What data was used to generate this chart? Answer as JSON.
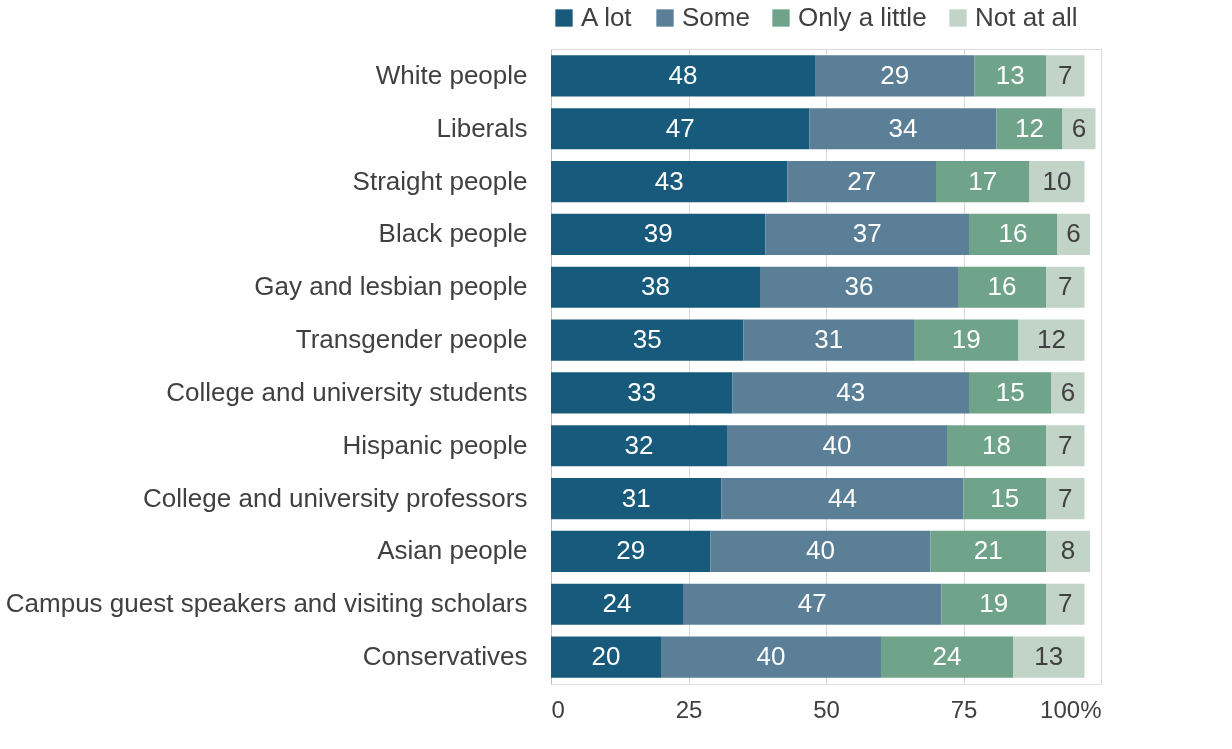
{
  "chart_data": {
    "type": "bar",
    "orientation": "horizontal",
    "stacked": true,
    "categories": [
      "White people",
      "Liberals",
      "Straight people",
      "Black people",
      "Gay and lesbian people",
      "Transgender people",
      "College and university students",
      "Hispanic people",
      "College and university professors",
      "Asian people",
      "Campus guest speakers and visiting scholars",
      "Conservatives"
    ],
    "series": [
      {
        "name": "A lot",
        "color": "#175a7c",
        "values": [
          48,
          47,
          43,
          39,
          38,
          35,
          33,
          32,
          31,
          29,
          24,
          20
        ]
      },
      {
        "name": "Some",
        "color": "#5b7f96",
        "values": [
          29,
          34,
          27,
          37,
          36,
          31,
          43,
          40,
          44,
          40,
          47,
          40
        ]
      },
      {
        "name": "Only a little",
        "color": "#6fa38a",
        "values": [
          13,
          12,
          17,
          16,
          16,
          19,
          15,
          18,
          15,
          21,
          19,
          24
        ]
      },
      {
        "name": "Not at all",
        "color": "#c2d3c8",
        "values": [
          7,
          6,
          10,
          6,
          7,
          12,
          6,
          7,
          7,
          8,
          7,
          13
        ]
      }
    ],
    "xlim": [
      0,
      100
    ],
    "xticks": [
      0,
      25,
      50,
      75,
      {
        "value": 100,
        "label": "100%"
      }
    ],
    "grid": "x",
    "legend": "top",
    "data_labels": true
  }
}
